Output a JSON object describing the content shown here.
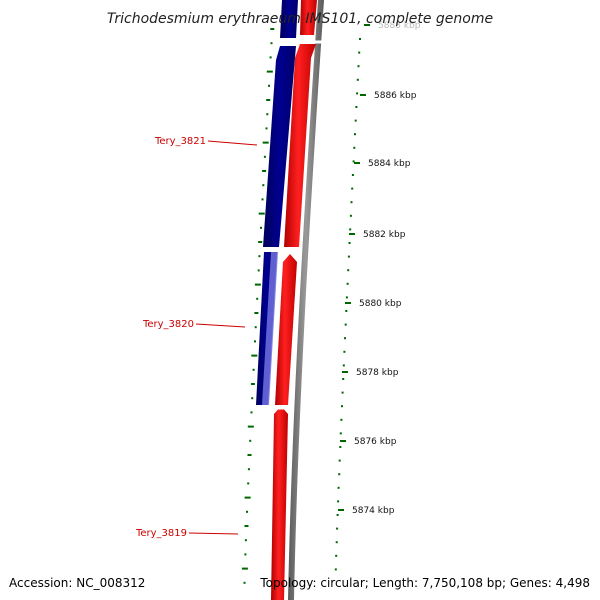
{
  "title": "Trichodesmium erythraeum IMS101, complete genome",
  "accession": "Accession: NC_008312",
  "topology": "Topology: circular; Length: 7,750,108 bp; Genes: 4,498",
  "scale_labels": [
    "5888 kbp",
    "5886 kbp",
    "5884 kbp",
    "5882 kbp",
    "5880 kbp",
    "5878 kbp",
    "5876 kbp",
    "5874 kbp"
  ],
  "genes": [
    {
      "name": "Tery_3821"
    },
    {
      "name": "Tery_3820"
    },
    {
      "name": "Tery_3819"
    }
  ],
  "colors": {
    "forward_strand": "#ff0000",
    "reverse_strand": "#000080",
    "reverse_strand_light": "#7070e0",
    "backbone": "#808080",
    "gc_skew": "#006600",
    "label": "#cc0000"
  }
}
